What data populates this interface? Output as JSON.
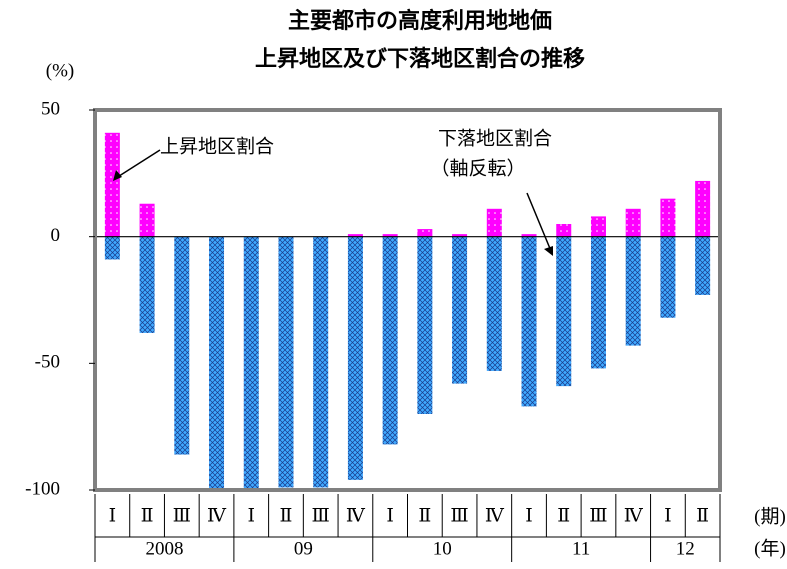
{
  "chart_data": {
    "type": "bar",
    "title": [
      "主要都市の高度利用地地価",
      "上昇地区及び下落地区割合の推移"
    ],
    "y_unit": "(%)",
    "x_unit_quarter": "(期)",
    "x_unit_year": "(年)",
    "categories": [
      "Ⅰ",
      "Ⅱ",
      "Ⅲ",
      "Ⅳ",
      "Ⅰ",
      "Ⅱ",
      "Ⅲ",
      "Ⅳ",
      "Ⅰ",
      "Ⅱ",
      "Ⅲ",
      "Ⅳ",
      "Ⅰ",
      "Ⅱ",
      "Ⅲ",
      "Ⅳ",
      "Ⅰ",
      "Ⅱ"
    ],
    "groups": [
      {
        "label": "2008",
        "size": 4
      },
      {
        "label": "09",
        "size": 4
      },
      {
        "label": "10",
        "size": 4
      },
      {
        "label": "11",
        "size": 4
      },
      {
        "label": "12",
        "size": 2
      }
    ],
    "series": [
      {
        "name": "上昇地区割合",
        "color": "#ff00ff",
        "values": [
          41,
          13,
          0,
          0,
          0,
          0,
          0,
          1,
          1,
          3,
          1,
          11,
          1,
          5,
          8,
          11,
          15,
          22
        ]
      },
      {
        "name": "下落地区割合",
        "color": "#3399ff",
        "values": [
          -9,
          -38,
          -86,
          -100,
          -100,
          -99,
          -99,
          -96,
          -82,
          -70,
          -58,
          -53,
          -67,
          -59,
          -52,
          -43,
          -32,
          -23
        ]
      }
    ],
    "annotation": "（軸反転）",
    "ylim": [
      -100,
      50
    ],
    "yticks": [
      50,
      0,
      -50,
      -100
    ]
  }
}
